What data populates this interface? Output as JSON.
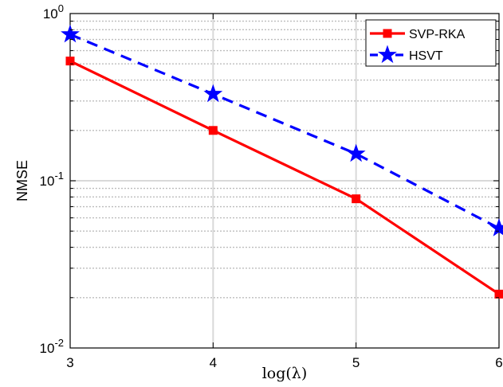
{
  "chart_data": {
    "type": "line",
    "x": [
      3,
      4,
      5,
      6
    ],
    "xlabel": "log(λ)",
    "ylabel": "NMSE",
    "xlim": [
      3,
      6
    ],
    "ylim": [
      0.01,
      1
    ],
    "yscale": "log",
    "xticks": [
      "3",
      "4",
      "5",
      "6"
    ],
    "yticks": [
      {
        "base": "10",
        "exp": "0",
        "value": 1
      },
      {
        "base": "10",
        "exp": "-1",
        "value": 0.1
      },
      {
        "base": "10",
        "exp": "-2",
        "value": 0.01
      }
    ],
    "grid": true,
    "legend_position": "top-right",
    "series": [
      {
        "name": "SVP-RKA",
        "values": [
          0.52,
          0.2,
          0.078,
          0.021
        ],
        "color": "#ff0000",
        "marker": "square",
        "linestyle": "solid"
      },
      {
        "name": "HSVT",
        "values": [
          0.75,
          0.33,
          0.145,
          0.052
        ],
        "color": "#0000ff",
        "marker": "star",
        "linestyle": "dashed"
      }
    ]
  }
}
